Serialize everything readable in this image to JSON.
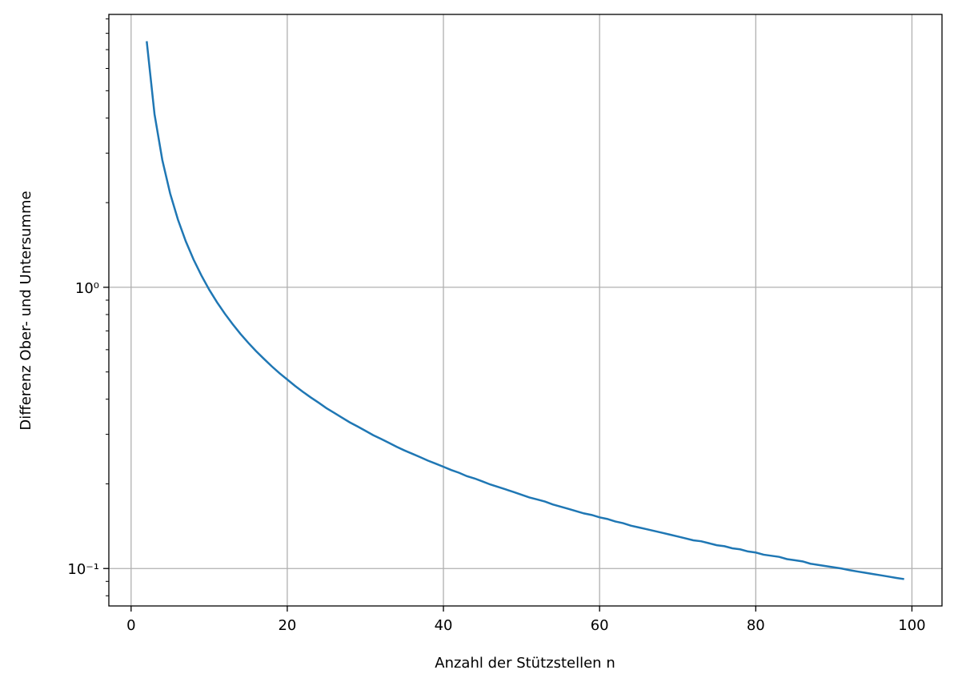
{
  "chart_data": {
    "type": "line",
    "log_y": true,
    "grid": true,
    "xlabel": "Anzahl der Stützstellen n",
    "ylabel": "Differenz Ober- und Untersumme",
    "xlim": [
      -2.85,
      103.85
    ],
    "xticks": [
      0,
      20,
      40,
      60,
      80,
      100
    ],
    "ylim": [
      0.0736,
      9.34
    ],
    "yticks": [
      {
        "value": 0.1,
        "label": "10⁻¹"
      },
      {
        "value": 1,
        "label": "10⁰"
      }
    ],
    "yminor_ticks": [
      0.08,
      0.09,
      0.2,
      0.3,
      0.4,
      0.5,
      0.6,
      0.7,
      0.8,
      0.9,
      2,
      3,
      4,
      5,
      6,
      7,
      8,
      9
    ],
    "x": [
      2,
      3,
      4,
      5,
      6,
      7,
      8,
      9,
      10,
      11,
      12,
      13,
      14,
      15,
      16,
      17,
      18,
      19,
      20,
      21,
      22,
      23,
      24,
      25,
      26,
      27,
      28,
      29,
      30,
      31,
      32,
      33,
      34,
      35,
      36,
      37,
      38,
      39,
      40,
      41,
      42,
      43,
      44,
      45,
      46,
      47,
      48,
      49,
      50,
      51,
      52,
      53,
      54,
      55,
      56,
      57,
      58,
      59,
      60,
      61,
      62,
      63,
      64,
      65,
      66,
      67,
      68,
      69,
      70,
      71,
      72,
      73,
      74,
      75,
      76,
      77,
      78,
      79,
      80,
      81,
      82,
      83,
      84,
      85,
      86,
      87,
      88,
      89,
      90,
      91,
      92,
      93,
      94,
      95,
      96,
      97,
      98,
      99
    ],
    "series": [
      {
        "color": "#1f77b4",
        "values": [
          7.5,
          4.125,
          2.833,
          2.156,
          1.74,
          1.458,
          1.255,
          1.102,
          0.981,
          0.885,
          0.806,
          0.74,
          0.683,
          0.635,
          0.593,
          0.557,
          0.524,
          0.495,
          0.47,
          0.446,
          0.425,
          0.406,
          0.389,
          0.372,
          0.358,
          0.344,
          0.331,
          0.32,
          0.309,
          0.298,
          0.289,
          0.28,
          0.271,
          0.263,
          0.256,
          0.249,
          0.242,
          0.236,
          0.23,
          0.224,
          0.219,
          0.213,
          0.209,
          0.204,
          0.199,
          0.195,
          0.191,
          0.187,
          0.183,
          0.179,
          0.176,
          0.173,
          0.169,
          0.166,
          0.163,
          0.16,
          0.157,
          0.155,
          0.152,
          0.15,
          0.147,
          0.145,
          0.142,
          0.14,
          0.138,
          0.136,
          0.134,
          0.132,
          0.13,
          0.128,
          0.126,
          0.125,
          0.123,
          0.121,
          0.12,
          0.118,
          0.117,
          0.115,
          0.114,
          0.112,
          0.111,
          0.11,
          0.108,
          0.107,
          0.106,
          0.104,
          0.103,
          0.102,
          0.101,
          0.1,
          0.0987,
          0.0976,
          0.0966,
          0.0956,
          0.0946,
          0.0936,
          0.0926,
          0.0917
        ]
      }
    ]
  }
}
